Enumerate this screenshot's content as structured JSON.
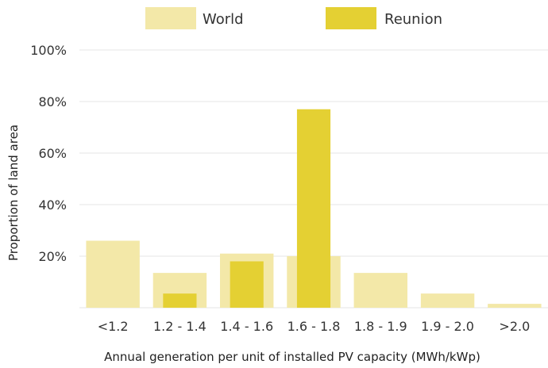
{
  "chart_data": {
    "type": "bar",
    "title": "",
    "xlabel": "Annual generation per unit of installed PV capacity (MWh/kWp)",
    "ylabel": "Proportion of land area",
    "categories": [
      "<1.2",
      "1.2 - 1.4",
      "1.4 - 1.6",
      "1.6 - 1.8",
      "1.8 - 1.9",
      "1.9 - 2.0",
      ">2.0"
    ],
    "series": [
      {
        "name": "World",
        "color": "#f3e8a8",
        "values": [
          26,
          13.5,
          21,
          20,
          13.5,
          5.5,
          1.5
        ]
      },
      {
        "name": "Reunion",
        "color": "#e4d033",
        "values": [
          0,
          5.5,
          18,
          77,
          0,
          0,
          0
        ]
      }
    ],
    "ylim": [
      0,
      100
    ],
    "yticks": [
      "20%",
      "40%",
      "60%",
      "80%",
      "100%"
    ],
    "ytick_values": [
      20,
      40,
      60,
      80,
      100
    ],
    "grid": true,
    "legend_position": "top-center",
    "bar_style": "overlapping"
  }
}
